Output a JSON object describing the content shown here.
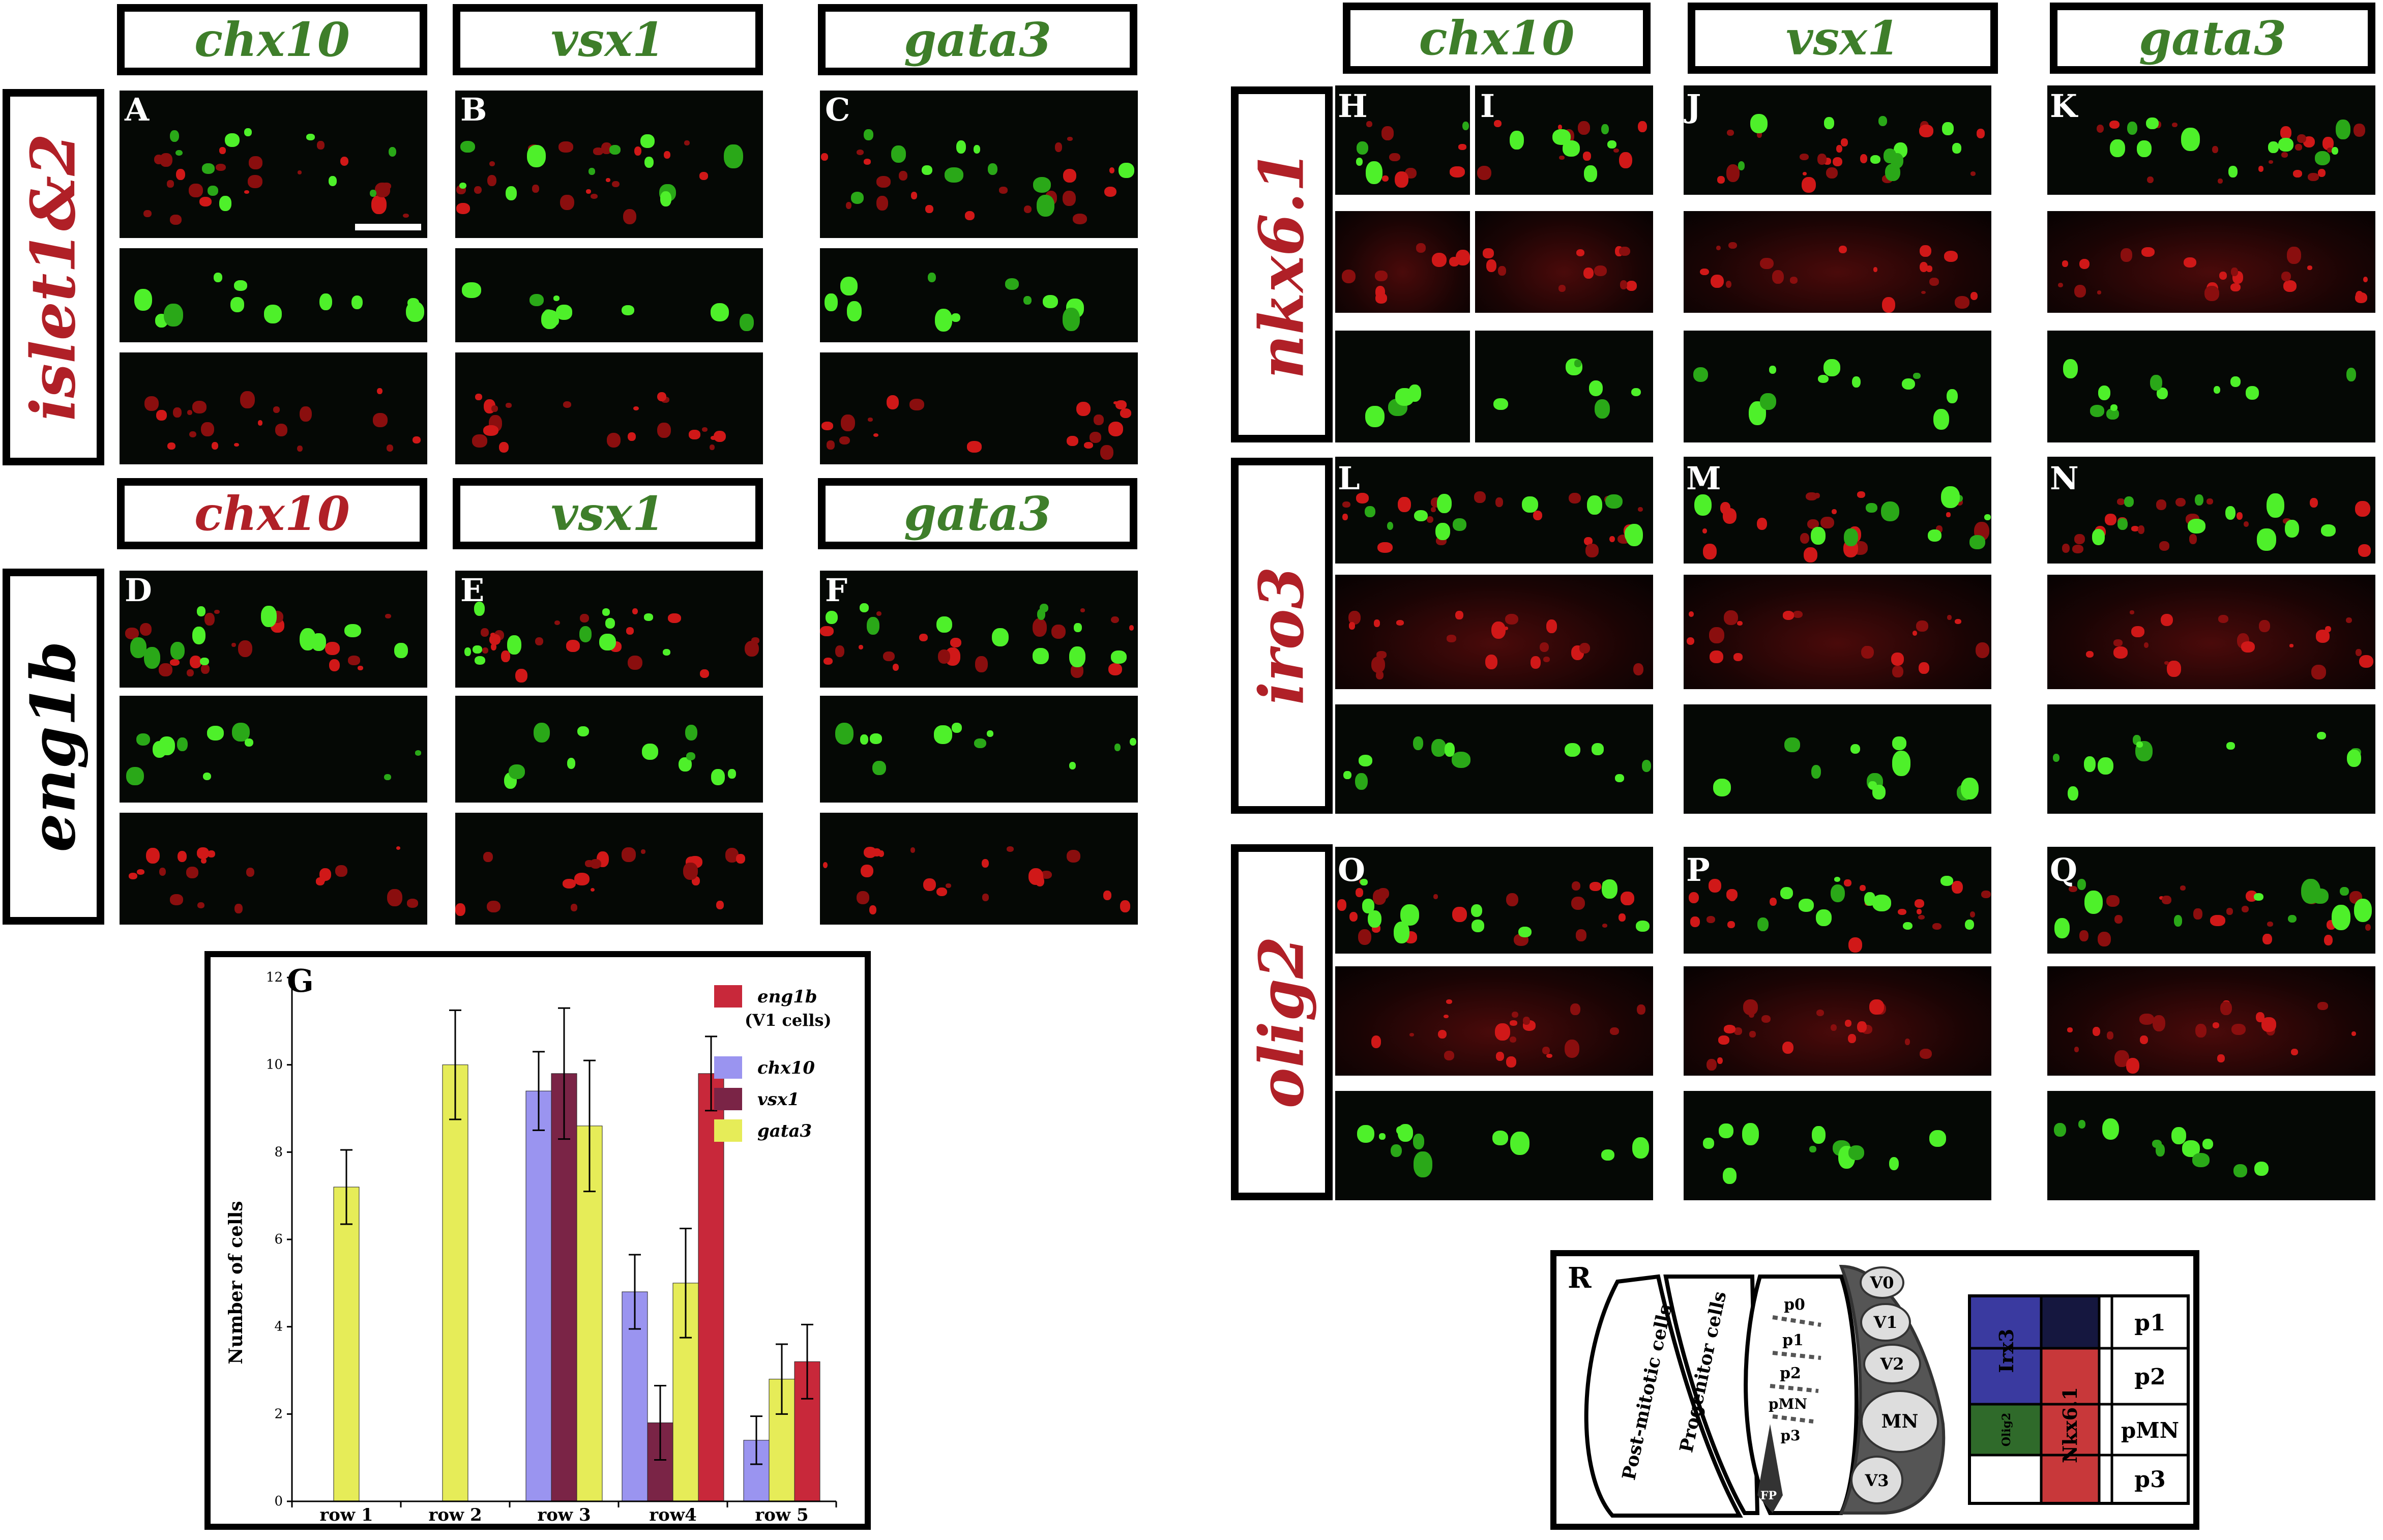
{
  "left_block": {
    "headers_top": [
      "chx10",
      "vsx1",
      "gata3"
    ],
    "headers_top_colors": [
      "#3e7e2a",
      "#3e7e2a",
      "#3e7e2a"
    ],
    "headers_mid": [
      "chx10",
      "vsx1",
      "gata3"
    ],
    "headers_mid_colors": [
      "#b02027",
      "#3e7e2a",
      "#3e7e2a"
    ],
    "row_labels": [
      "islet1&2",
      "eng1b"
    ],
    "row_label_colors": [
      "#b02027",
      "#000000"
    ],
    "panel_letters_top": [
      "A",
      "B",
      "C"
    ],
    "panel_letters_mid": [
      "D",
      "E",
      "F"
    ]
  },
  "right_block": {
    "headers": [
      "chx10",
      "vsx1",
      "gata3"
    ],
    "row_labels": [
      "nkx6.1",
      "iro3",
      "olig2"
    ],
    "panel_letters": [
      [
        "H",
        "I",
        "J",
        "K"
      ],
      [
        "L",
        "M",
        "N"
      ],
      [
        "O",
        "P",
        "Q"
      ]
    ]
  },
  "chart_data": {
    "type": "bar",
    "panel_letter": "G",
    "ylabel": "Number of cells",
    "ylim": [
      0,
      12
    ],
    "yticks": [
      "0",
      "2",
      "4",
      "6",
      "8",
      "10",
      "12"
    ],
    "categories": [
      "row 1",
      "row 2",
      "row 3",
      "row4",
      "row 5"
    ],
    "legend_placement": "top-right",
    "legend": [
      {
        "name": "eng1b",
        "note": "(V1 cells)",
        "color": "#c8283a"
      },
      {
        "name": "chx10",
        "color": "#9a94f0"
      },
      {
        "name": "vsx1",
        "color": "#7a2446"
      },
      {
        "name": "gata3",
        "color": "#e6ec58"
      }
    ],
    "series": [
      {
        "name": "chx10",
        "color": "#9a94f0",
        "values": [
          null,
          null,
          9.4,
          4.8,
          1.4
        ],
        "errors": [
          null,
          null,
          0.9,
          0.85,
          0.55
        ]
      },
      {
        "name": "vsx1",
        "color": "#7a2446",
        "values": [
          null,
          null,
          9.8,
          1.8,
          null
        ],
        "errors": [
          null,
          null,
          1.5,
          0.85,
          null
        ]
      },
      {
        "name": "gata3",
        "color": "#e6ec58",
        "values": [
          7.2,
          10.0,
          8.6,
          5.0,
          2.8
        ],
        "errors": [
          0.85,
          1.25,
          1.5,
          1.25,
          0.8
        ]
      },
      {
        "name": "eng1b",
        "color": "#c8283a",
        "values": [
          null,
          null,
          null,
          9.8,
          3.2
        ],
        "errors": [
          null,
          null,
          null,
          0.85,
          0.85
        ]
      }
    ]
  },
  "diagram_r": {
    "panel_letter": "R",
    "text_postmitotic": "Post-mitotic cells",
    "text_progenitor": "Progenitor cells",
    "progenitor_domains": [
      "p0",
      "p1",
      "p2",
      "pMN",
      "p3"
    ],
    "floor_plate": "FP",
    "neuron_domains": [
      "V0",
      "V1",
      "V2",
      "MN",
      "V3"
    ],
    "table_rows": [
      "p1",
      "p2",
      "pMN",
      "p3"
    ],
    "irx3_label": "Irx3",
    "olig2_label": "Olig2",
    "nkx61_label": "Nkx6.1",
    "colors": {
      "irx3": "#3a3aa0",
      "olig2": "#2f6a2a",
      "nkx61": "#c8383a",
      "navy": "#15173f"
    }
  }
}
